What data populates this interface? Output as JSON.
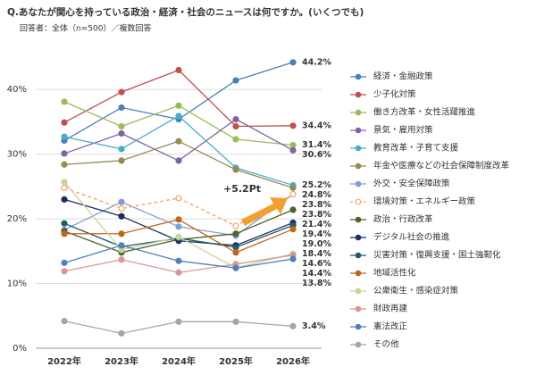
{
  "chart_data": {
    "type": "line",
    "title": "Q.あなたが関心を持っている政治・経済・社会のニュースは何ですか。(いくつでも)",
    "subtitle": "回答者：全体（n=500）／複数回答",
    "annotation": "+5.2Pt",
    "categories": [
      "2022年",
      "2023年",
      "2024年",
      "2025年",
      "2026年"
    ],
    "ylim": [
      0,
      45
    ],
    "yticks": [
      {
        "value": 0,
        "label": "0%"
      },
      {
        "value": 10,
        "label": "10%"
      },
      {
        "value": 20,
        "label": "20%"
      },
      {
        "value": 30,
        "label": "30%"
      },
      {
        "value": 40,
        "label": "40%"
      }
    ],
    "grid": true,
    "legend": "right",
    "series": [
      {
        "name": "経済・金融政策",
        "color": "#4a7fc1",
        "values": [
          32.1,
          37.2,
          35.4,
          41.4,
          44.2
        ],
        "value_labels": [
          null,
          null,
          null,
          null,
          "44.2%"
        ]
      },
      {
        "name": "少子化対策",
        "color": "#c0504d",
        "values": [
          34.9,
          39.6,
          43.0,
          34.3,
          34.4
        ],
        "value_labels": [
          null,
          null,
          null,
          null,
          "34.4%"
        ]
      },
      {
        "name": "働き方改革・女性活躍推進",
        "color": "#9bbb59",
        "values": [
          38.1,
          34.3,
          37.5,
          32.3,
          31.4
        ],
        "value_labels": [
          null,
          null,
          null,
          null,
          "31.4%"
        ]
      },
      {
        "name": "景気・雇用対策",
        "color": "#8064a2",
        "values": [
          30.1,
          33.2,
          29.0,
          35.4,
          30.6
        ],
        "value_labels": [
          null,
          null,
          null,
          null,
          "30.6%"
        ]
      },
      {
        "name": "教育改革・子育て支援",
        "color": "#4bacc6",
        "values": [
          32.7,
          30.8,
          35.9,
          27.9,
          25.2
        ],
        "value_labels": [
          null,
          null,
          null,
          null,
          "25.2%"
        ]
      },
      {
        "name": "年金や医療などの社会保障制度改革",
        "color": "#948a54",
        "values": [
          28.4,
          29.0,
          32.0,
          27.6,
          24.8
        ],
        "value_labels": [
          null,
          null,
          null,
          null,
          "24.8%"
        ]
      },
      {
        "name": "外交・安全保障政策",
        "color": "#7f9fd6",
        "values": [
          18.3,
          22.6,
          18.8,
          17.4,
          23.8
        ],
        "value_labels": [
          null,
          null,
          null,
          null,
          "23.8%"
        ]
      },
      {
        "name": "環境対策・エネルギー政策",
        "color": "#f4a460",
        "dash": true,
        "values": [
          24.8,
          21.6,
          23.2,
          18.9,
          23.8
        ],
        "value_labels": [
          null,
          null,
          null,
          null,
          "23.8%"
        ]
      },
      {
        "name": "政治・行政改革",
        "color": "#4f6228",
        "values": [
          18.1,
          14.8,
          16.8,
          17.7,
          21.4
        ],
        "value_labels": [
          null,
          null,
          null,
          null,
          "21.4%"
        ]
      },
      {
        "name": "デジタル社会の推進",
        "color": "#1f2d5a",
        "values": [
          23.0,
          20.4,
          16.6,
          15.9,
          19.4
        ],
        "value_labels": [
          null,
          null,
          null,
          null,
          "19.4%"
        ]
      },
      {
        "name": "災害対策・復興支援・国土強靭化",
        "color": "#215968",
        "values": [
          19.3,
          15.7,
          17.0,
          15.6,
          19.0
        ],
        "value_labels": [
          null,
          null,
          null,
          null,
          "19.0%"
        ]
      },
      {
        "name": "地域活性化",
        "color": "#c0661a",
        "values": [
          17.7,
          17.7,
          19.9,
          14.8,
          18.4
        ],
        "value_labels": [
          null,
          null,
          null,
          null,
          "18.4%"
        ]
      },
      {
        "name": "公衆衛生・感染症対策",
        "color": "#c3d69b",
        "values": [
          25.7,
          15.2,
          17.2,
          12.4,
          14.6
        ],
        "value_labels": [
          null,
          null,
          null,
          null,
          "14.6%"
        ]
      },
      {
        "name": "財政再建",
        "color": "#d99694",
        "values": [
          11.9,
          13.7,
          11.7,
          13.0,
          14.4
        ],
        "value_labels": [
          null,
          null,
          null,
          null,
          "14.4%"
        ]
      },
      {
        "name": "憲法改正",
        "color": "#4f81bd",
        "values": [
          13.2,
          15.9,
          13.5,
          12.4,
          13.8
        ],
        "value_labels": [
          null,
          null,
          null,
          null,
          "13.8%"
        ]
      },
      {
        "name": "その他",
        "color": "#a6a6a6",
        "values": [
          4.2,
          2.3,
          4.1,
          4.1,
          3.4
        ],
        "value_labels": [
          null,
          null,
          null,
          null,
          "3.4%"
        ]
      }
    ]
  }
}
